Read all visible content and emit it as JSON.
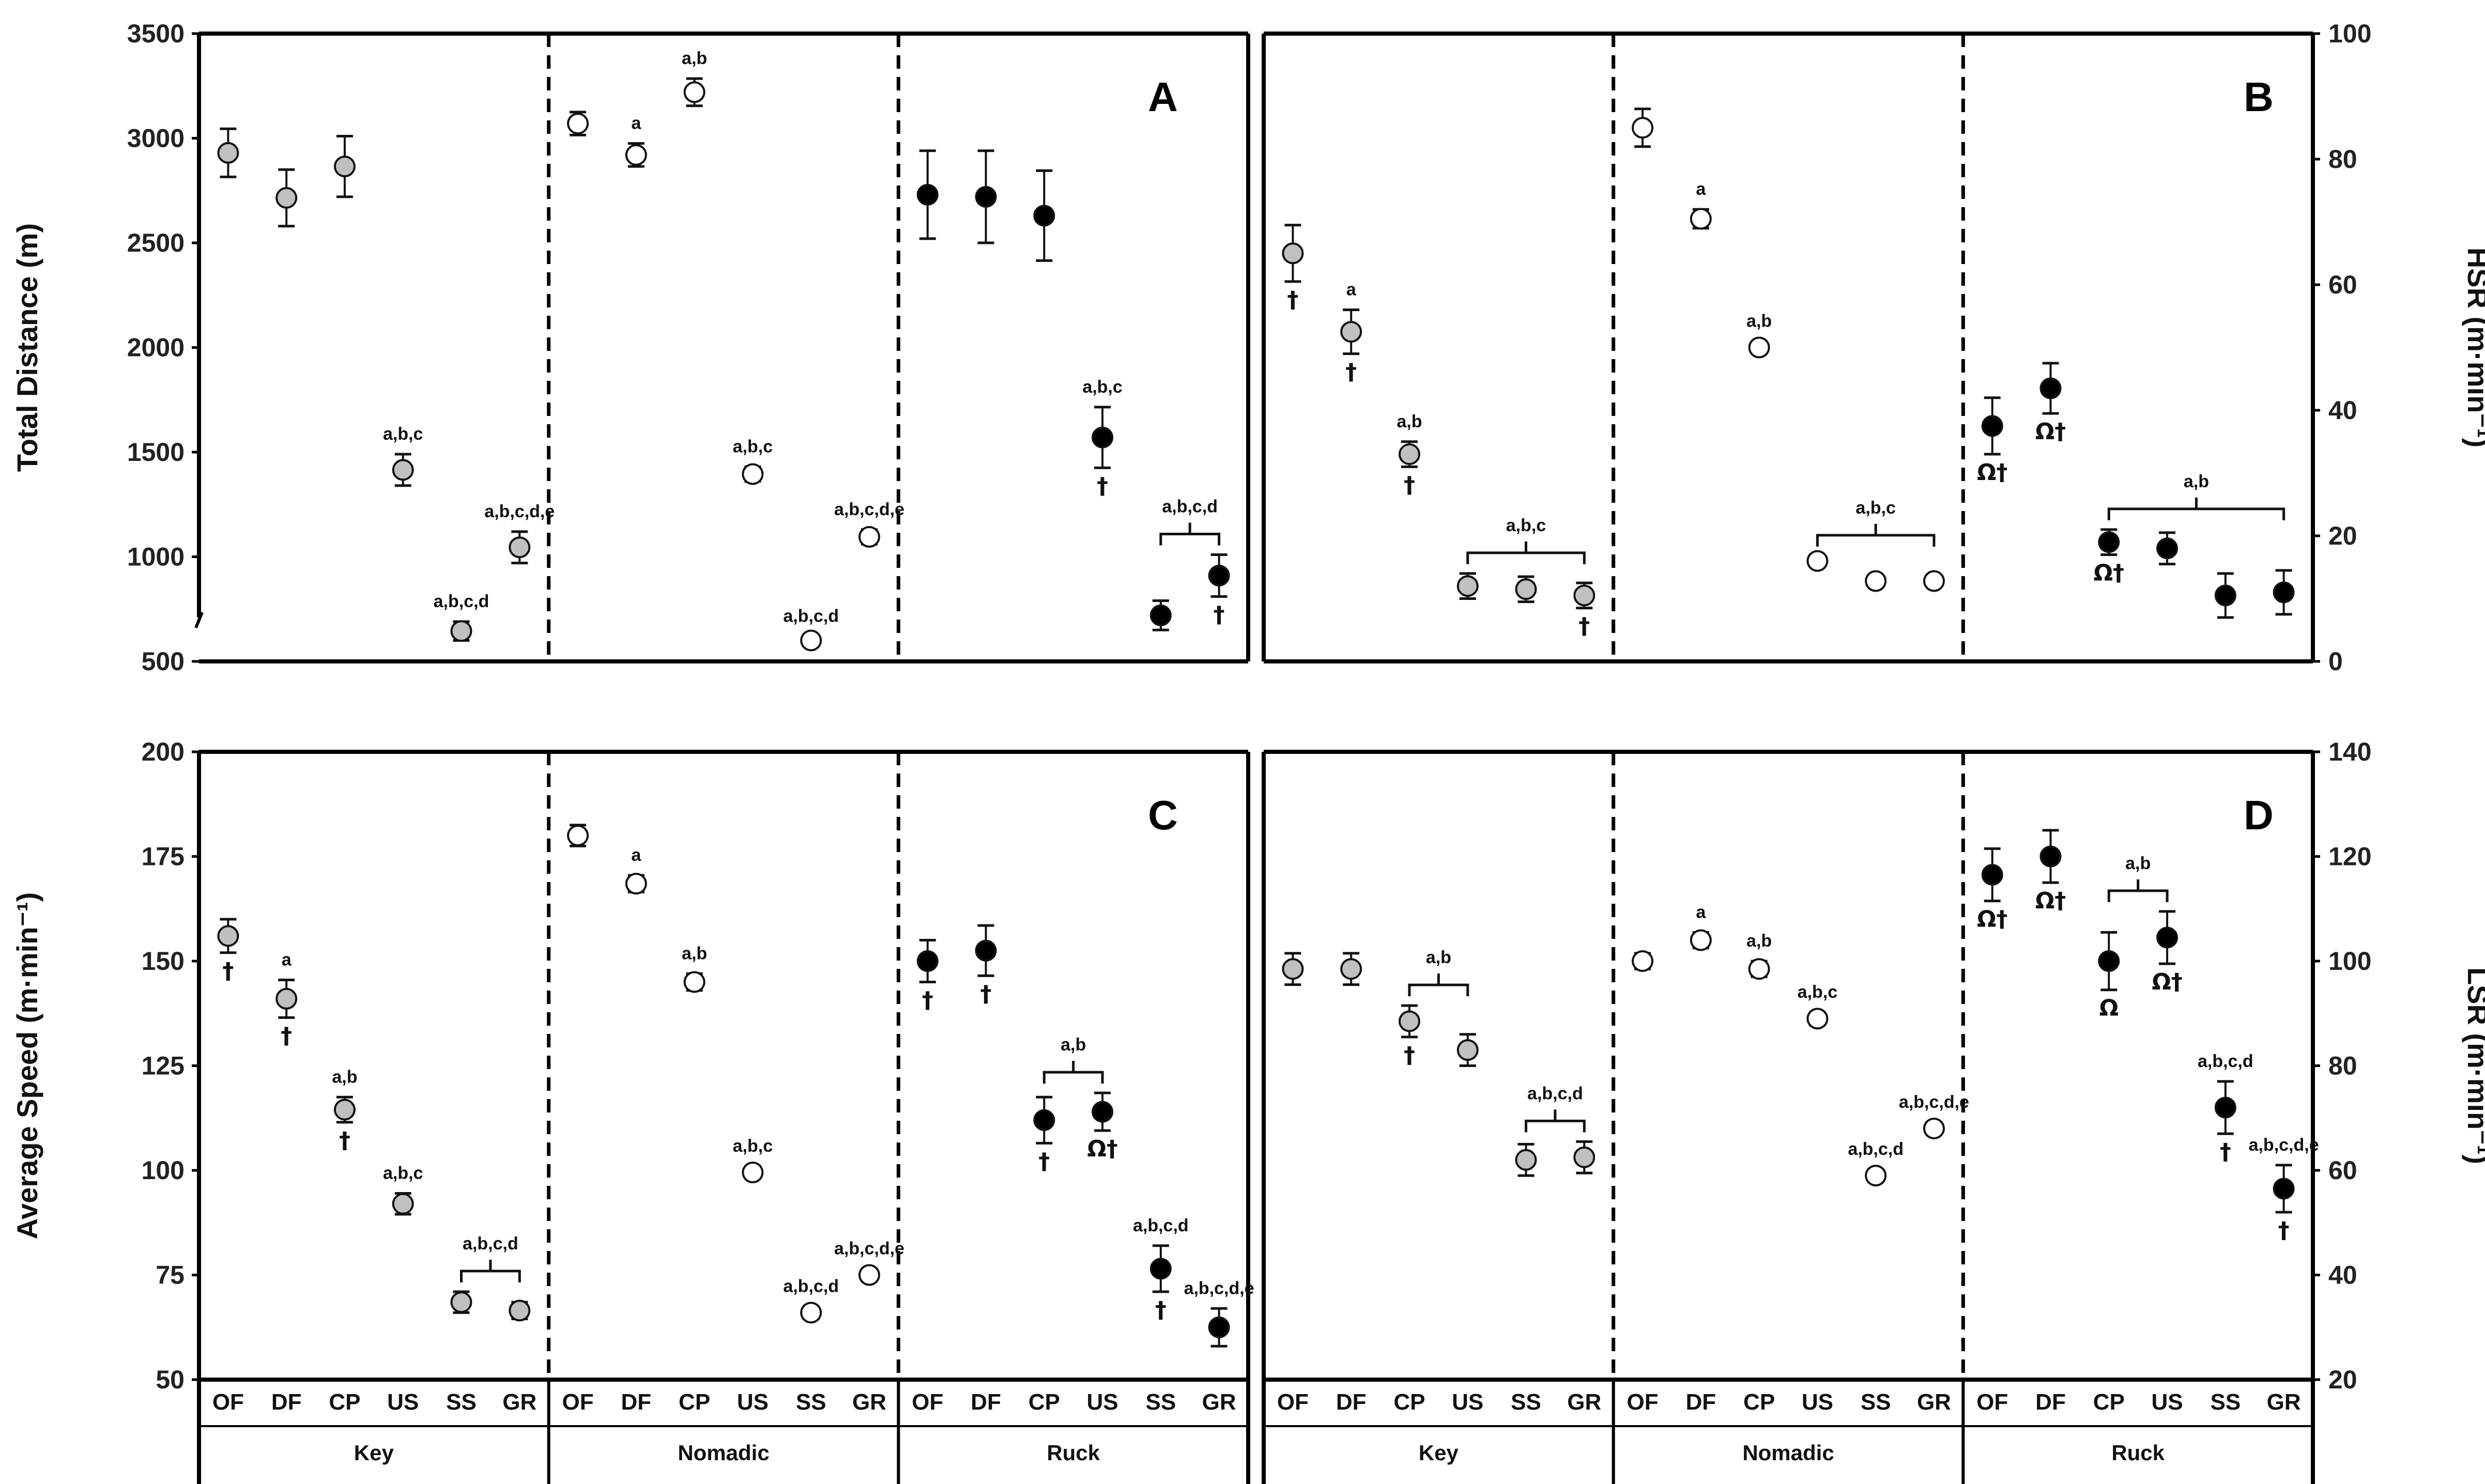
{
  "colors": {
    "key": "#c0c0c0",
    "nomadic": "#ffffff",
    "ruck": "#000000",
    "axis": "#000000"
  },
  "categories": [
    "OF",
    "DF",
    "CP",
    "US",
    "SS",
    "GR"
  ],
  "groups": [
    "Key",
    "Nomadic",
    "Ruck"
  ],
  "chart_data": [
    {
      "type": "scatter",
      "panel": "A",
      "ylabel": "Total Distance (m)",
      "yaxis_side": "left",
      "ylim": [
        500,
        3500
      ],
      "yticks": [
        500,
        1000,
        1500,
        2000,
        2500,
        3000,
        3500
      ],
      "y_broken_bottom": true,
      "series": [
        {
          "name": "Key",
          "values": [
            2930,
            2715,
            2865,
            1415,
            645,
            1045
          ],
          "err": [
            115,
            135,
            145,
            75,
            45,
            75
          ],
          "labels": [
            "",
            "",
            "",
            "a,b,c",
            "a,b,c,d",
            "a,b,c,d,e"
          ],
          "marks": [
            "",
            "",
            "",
            "",
            "",
            ""
          ]
        },
        {
          "name": "Nomadic",
          "values": [
            3070,
            2920,
            3220,
            1395,
            600,
            1095
          ],
          "err": [
            55,
            55,
            65,
            35,
            20,
            35
          ],
          "labels": [
            "",
            "a",
            "a,b",
            "a,b,c",
            "a,b,c,d",
            "a,b,c,d,e"
          ],
          "marks": [
            "",
            "",
            "",
            "",
            "",
            ""
          ]
        },
        {
          "name": "Ruck",
          "values": [
            2730,
            2720,
            2630,
            1570,
            720,
            910
          ],
          "err": [
            210,
            220,
            215,
            145,
            70,
            100
          ],
          "labels": [
            "",
            "",
            "",
            "a,b,c",
            "",
            ""
          ],
          "marks": [
            "",
            "",
            "",
            "†",
            "",
            "†"
          ]
        }
      ],
      "brackets": [
        {
          "group": 2,
          "from": 4,
          "to": 5,
          "label": "a,b,c,d"
        }
      ]
    },
    {
      "type": "scatter",
      "panel": "B",
      "ylabel": "HSR (m·min⁻¹)",
      "yaxis_side": "right",
      "ylim": [
        0,
        100
      ],
      "yticks": [
        0,
        20,
        40,
        60,
        80,
        100
      ],
      "series": [
        {
          "name": "Key",
          "values": [
            65,
            52.5,
            33,
            12,
            11.5,
            10.5
          ],
          "err": [
            4.5,
            3.5,
            2,
            2,
            2,
            2
          ],
          "labels": [
            "",
            "a",
            "a,b",
            "",
            "",
            ""
          ],
          "marks": [
            "†",
            "†",
            "†",
            "",
            "",
            "†"
          ]
        },
        {
          "name": "Nomadic",
          "values": [
            85,
            70.5,
            50,
            16,
            12.8,
            12.8
          ],
          "err": [
            3,
            1.5,
            1,
            0.8,
            0.8,
            0.8
          ],
          "labels": [
            "",
            "a",
            "a,b",
            "",
            "",
            ""
          ],
          "marks": [
            "",
            "",
            "",
            "",
            "",
            ""
          ]
        },
        {
          "name": "Ruck",
          "values": [
            37.5,
            43.5,
            19,
            18,
            10.5,
            11
          ],
          "err": [
            4.5,
            4,
            2,
            2.5,
            3.5,
            3.5
          ],
          "labels": [
            "",
            "",
            "",
            "",
            "",
            ""
          ],
          "marks": [
            "Ω†",
            "Ω†",
            "Ω†",
            "",
            "",
            ""
          ]
        }
      ],
      "brackets": [
        {
          "group": 0,
          "from": 3,
          "to": 5,
          "label": "a,b,c"
        },
        {
          "group": 1,
          "from": 3,
          "to": 5,
          "label": "a,b,c"
        },
        {
          "group": 2,
          "from": 2,
          "to": 5,
          "label": "a,b"
        }
      ]
    },
    {
      "type": "scatter",
      "panel": "C",
      "ylabel": "Average Speed (m·min⁻¹)",
      "yaxis_side": "left",
      "ylim": [
        50,
        200
      ],
      "yticks": [
        50,
        75,
        100,
        125,
        150,
        175,
        200
      ],
      "series": [
        {
          "name": "Key",
          "values": [
            156,
            141,
            114.5,
            92,
            68.5,
            66.5
          ],
          "err": [
            4,
            4.5,
            3,
            2.5,
            2.5,
            2
          ],
          "labels": [
            "",
            "a",
            "a,b",
            "a,b,c",
            "",
            ""
          ],
          "marks": [
            "†",
            "†",
            "†",
            "",
            "",
            ""
          ]
        },
        {
          "name": "Nomadic",
          "values": [
            180,
            168.5,
            145,
            99.5,
            66,
            75
          ],
          "err": [
            2.5,
            2,
            2,
            1.5,
            1.5,
            1.5
          ],
          "labels": [
            "",
            "a",
            "a,b",
            "a,b,c",
            "a,b,c,d",
            "a,b,c,d,e"
          ],
          "marks": [
            "",
            "",
            "",
            "",
            "",
            ""
          ]
        },
        {
          "name": "Ruck",
          "values": [
            150,
            152.5,
            112,
            114,
            76.5,
            62.5
          ],
          "err": [
            5,
            6,
            5.5,
            4.5,
            5.5,
            4.5
          ],
          "labels": [
            "",
            "",
            "",
            "",
            "a,b,c,d",
            "a,b,c,d,e"
          ],
          "marks": [
            "†",
            "†",
            "†",
            "Ω†",
            "†",
            ""
          ]
        }
      ],
      "brackets": [
        {
          "group": 0,
          "from": 4,
          "to": 5,
          "label": "a,b,c,d"
        },
        {
          "group": 2,
          "from": 2,
          "to": 3,
          "label": "a,b"
        }
      ]
    },
    {
      "type": "scatter",
      "panel": "D",
      "ylabel": "LSR (m·min⁻¹)",
      "yaxis_side": "right",
      "ylim": [
        20,
        140
      ],
      "yticks": [
        20,
        40,
        60,
        80,
        100,
        120,
        140
      ],
      "series": [
        {
          "name": "Key",
          "values": [
            98.5,
            98.5,
            88.5,
            83,
            62,
            62.5
          ],
          "err": [
            3,
            3,
            3,
            3,
            3,
            3
          ],
          "labels": [
            "",
            "",
            "",
            "",
            "",
            ""
          ],
          "marks": [
            "",
            "",
            "†",
            "",
            "",
            ""
          ]
        },
        {
          "name": "Nomadic",
          "values": [
            100,
            104,
            98.5,
            89,
            59,
            68
          ],
          "err": [
            1.5,
            1.5,
            1.5,
            1.2,
            1.2,
            1.2
          ],
          "labels": [
            "",
            "a",
            "a,b",
            "a,b,c",
            "a,b,c,d",
            "a,b,c,d,e"
          ],
          "marks": [
            "",
            "",
            "",
            "",
            "",
            ""
          ]
        },
        {
          "name": "Ruck",
          "values": [
            116.5,
            120,
            100,
            104.5,
            72,
            56.5
          ],
          "err": [
            5,
            5,
            5.5,
            5,
            5,
            4.5
          ],
          "labels": [
            "",
            "",
            "",
            "",
            "a,b,c,d",
            "a,b,c,d,e"
          ],
          "marks": [
            "Ω†",
            "Ω†",
            "Ω",
            "Ω†",
            "†",
            "†"
          ]
        }
      ],
      "brackets": [
        {
          "group": 0,
          "from": 2,
          "to": 3,
          "label": "a,b"
        },
        {
          "group": 0,
          "from": 4,
          "to": 5,
          "label": "a,b,c,d"
        },
        {
          "group": 2,
          "from": 2,
          "to": 3,
          "label": "a,b"
        }
      ]
    }
  ]
}
